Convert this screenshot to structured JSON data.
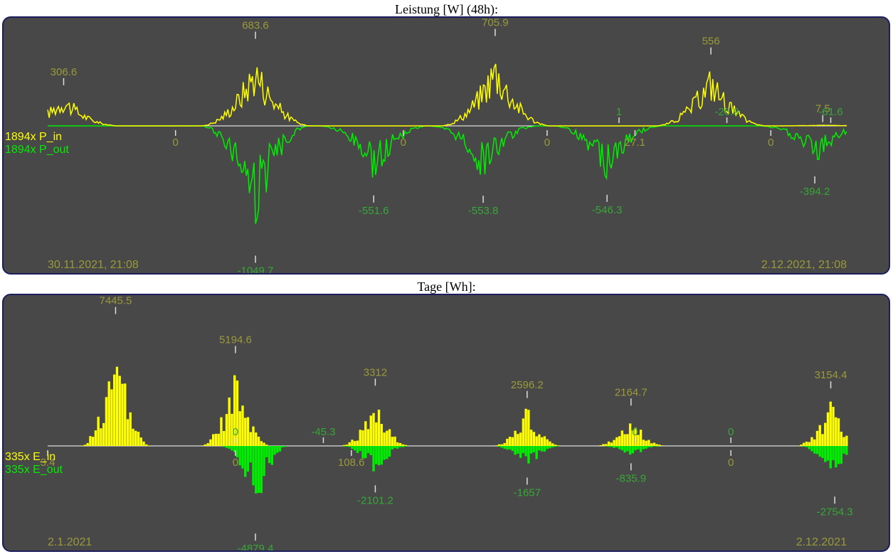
{
  "chart_data": [
    {
      "type": "bar",
      "title": "Leistung [W] (48h):",
      "x_range": [
        "30.11.2021, 21:08",
        "2.12.2021, 21:08"
      ],
      "colors": {
        "in": "#ffff00",
        "out": "#00ee00",
        "label": "#9a9a3a",
        "label_out": "#36a836",
        "axis": "#ffffff"
      },
      "series": [
        {
          "name": "P_in",
          "legend": "1894x P_in",
          "color": "#ffff00"
        },
        {
          "name": "P_out",
          "legend": "1894x P_out",
          "color": "#00ee00"
        }
      ],
      "ylim": [
        -1100,
        750
      ],
      "in_peaks": [
        {
          "t": 0.02,
          "v": 306.6
        },
        {
          "t": 0.26,
          "v": 683.6
        },
        {
          "t": 0.56,
          "v": 705.9
        },
        {
          "t": 0.83,
          "v": 556
        },
        {
          "t": 0.97,
          "v": 7.5
        }
      ],
      "in_other_labels": [
        {
          "t": 0.715,
          "v": 1
        },
        {
          "t": 0.85,
          "v": -26.9
        },
        {
          "t": 0.98,
          "v": -61.6
        }
      ],
      "out_peaks": [
        {
          "t": 0.26,
          "v": -1049.7
        },
        {
          "t": 0.408,
          "v": -551.6
        },
        {
          "t": 0.545,
          "v": -553.8
        },
        {
          "t": 0.7,
          "v": -546.3
        },
        {
          "t": 0.96,
          "v": -394.2
        }
      ],
      "out_other_labels": [
        {
          "t": 0.16,
          "v": 0
        },
        {
          "t": 0.445,
          "v": 0
        },
        {
          "t": 0.625,
          "v": 0
        },
        {
          "t": 0.735,
          "v": 27.1
        },
        {
          "t": 0.905,
          "v": 0
        }
      ]
    },
    {
      "type": "bar",
      "title": "Tage [Wh]:",
      "x_range": [
        "2.1.2021",
        "2.12.2021"
      ],
      "colors": {
        "in": "#ffff00",
        "out": "#00ee00",
        "label": "#9a9a3a",
        "label_out": "#36a836",
        "axis": "#ffffff"
      },
      "series": [
        {
          "name": "E_in",
          "legend": "335x E_in",
          "color": "#ffff00"
        },
        {
          "name": "E_out",
          "legend": "335x E_out",
          "color": "#00ee00"
        }
      ],
      "ylim": [
        -5200,
        7800
      ],
      "in_peaks": [
        {
          "t": 0.085,
          "v": 7445.5
        },
        {
          "t": 0.235,
          "v": 5194.6
        },
        {
          "t": 0.41,
          "v": 3312
        },
        {
          "t": 0.6,
          "v": 2596.2
        },
        {
          "t": 0.73,
          "v": 2164.7
        },
        {
          "t": 0.98,
          "v": 3154.4
        }
      ],
      "in_other_labels": [
        {
          "t": 0.345,
          "v": -45.3
        },
        {
          "t": 0.235,
          "v": 0
        },
        {
          "t": 0.735,
          "v": 0
        },
        {
          "t": 0.855,
          "v": 0
        }
      ],
      "out_peaks": [
        {
          "t": 0.26,
          "v": -4879.4
        },
        {
          "t": 0.41,
          "v": -2101.2
        },
        {
          "t": 0.6,
          "v": -1657
        },
        {
          "t": 0.73,
          "v": -835.9
        },
        {
          "t": 0.985,
          "v": -2754.3
        }
      ],
      "out_other_labels": [
        {
          "t": 0.0,
          "v": 3.4
        },
        {
          "t": 0.235,
          "v": 0
        },
        {
          "t": 0.38,
          "v": 108.6
        },
        {
          "t": 0.855,
          "v": 0
        }
      ]
    }
  ]
}
